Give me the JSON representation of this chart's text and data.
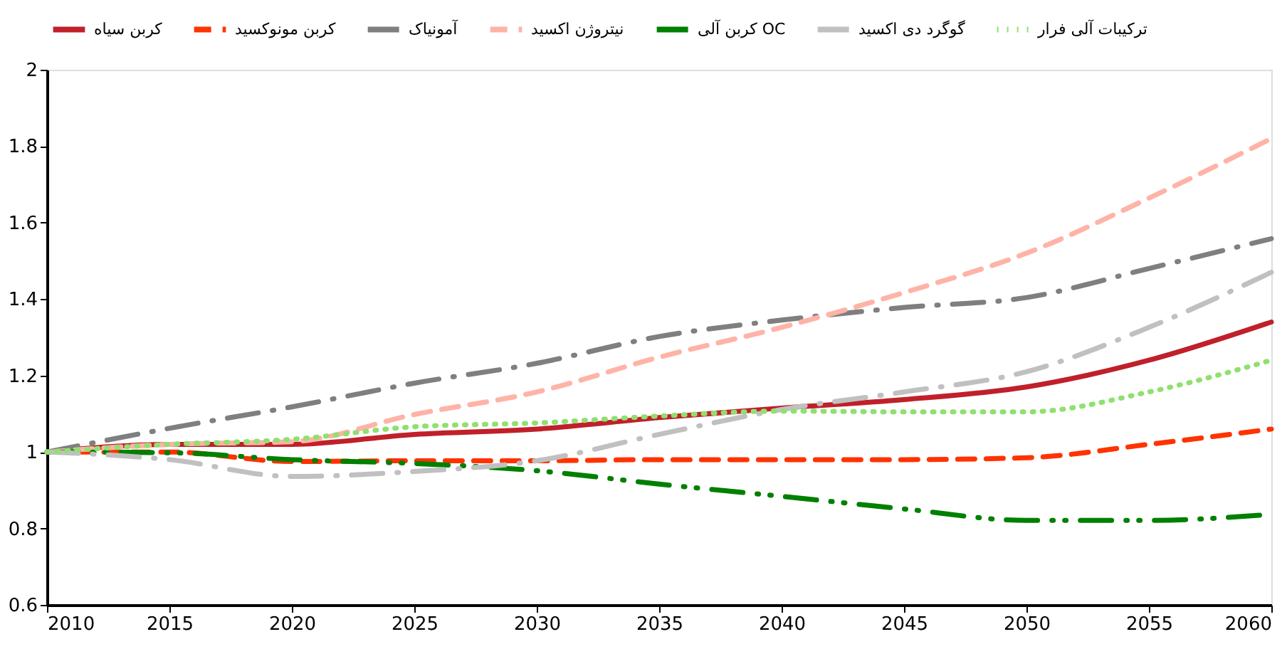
{
  "chart_data": {
    "type": "line",
    "x": [
      2010,
      2015,
      2020,
      2025,
      2030,
      2035,
      2040,
      2045,
      2050,
      2055,
      2060
    ],
    "xlim": [
      2010,
      2060
    ],
    "xticks": [
      2010,
      2015,
      2020,
      2025,
      2030,
      2035,
      2040,
      2045,
      2050,
      2055,
      2060
    ],
    "ylim": [
      0.6,
      2
    ],
    "yticks": [
      0.6,
      0.8,
      1,
      1.2,
      1.4,
      1.6,
      1.8,
      2
    ],
    "grid": false,
    "legend": "top",
    "marker": "none",
    "series": [
      {
        "name": "کربن سیاه",
        "color": "#c0202a",
        "line_style": "solid",
        "values": [
          1,
          1.02,
          1.02,
          1.046,
          1.06,
          1.09,
          1.115,
          1.137,
          1.17,
          1.24,
          1.34
        ]
      },
      {
        "name": "کربن مونوکسید",
        "color": "#ff3300",
        "line_style": "dashed",
        "values": [
          1,
          1,
          0.975,
          0.977,
          0.977,
          0.98,
          0.98,
          0.98,
          0.985,
          1.02,
          1.06
        ]
      },
      {
        "name": "آمونیاک",
        "color": "#7f7f7f",
        "line_style": "dashdot",
        "values": [
          1,
          1.062,
          1.118,
          1.18,
          1.232,
          1.302,
          1.345,
          1.378,
          1.404,
          1.48,
          1.558
        ]
      },
      {
        "name": "نیتروژن اکسید",
        "color": "#ffb3a7",
        "line_style": "dashed",
        "values": [
          1,
          1.02,
          1.027,
          1.098,
          1.157,
          1.248,
          1.326,
          1.417,
          1.52,
          1.664,
          1.82
        ]
      },
      {
        "name": "کربن آلی OC",
        "color": "#008000",
        "line_style": "dashdotdot",
        "values": [
          1,
          0.998,
          0.98,
          0.97,
          0.951,
          0.916,
          0.884,
          0.851,
          0.821,
          0.821,
          0.837
        ]
      },
      {
        "name": "گوگرد دی اکسید",
        "color": "#c0c0c0",
        "line_style": "dashdot",
        "values": [
          1,
          0.98,
          0.936,
          0.949,
          0.977,
          1.046,
          1.111,
          1.157,
          1.21,
          1.326,
          1.47
        ]
      },
      {
        "name": "ترکیبات آلی فرار",
        "color": "#90e070",
        "line_style": "dotted",
        "values": [
          1,
          1.02,
          1.033,
          1.066,
          1.076,
          1.094,
          1.107,
          1.105,
          1.105,
          1.157,
          1.24
        ]
      }
    ]
  }
}
